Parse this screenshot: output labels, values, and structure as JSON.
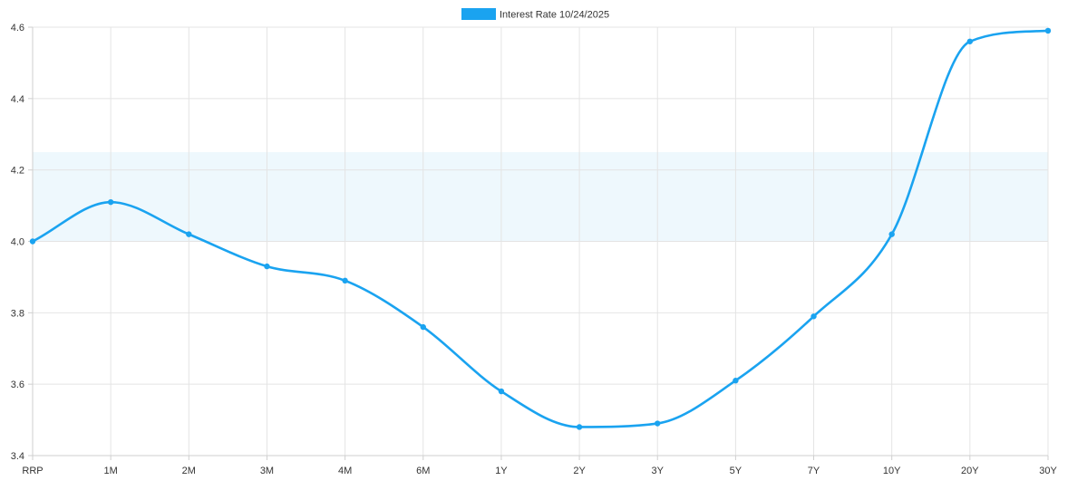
{
  "chart_data": {
    "type": "line",
    "categories": [
      "RRP",
      "1M",
      "2M",
      "3M",
      "4M",
      "6M",
      "1Y",
      "2Y",
      "3Y",
      "5Y",
      "7Y",
      "10Y",
      "20Y",
      "30Y"
    ],
    "series": [
      {
        "name": "Interest Rate 10/24/2025",
        "values": [
          4.0,
          4.11,
          4.02,
          3.93,
          3.89,
          3.76,
          3.58,
          3.48,
          3.49,
          3.61,
          3.79,
          4.02,
          4.56,
          4.59
        ],
        "color": "#1aa3f0"
      }
    ],
    "ylim": [
      3.4,
      4.6
    ],
    "yticks": [
      "3.4",
      "3.6",
      "3.8",
      "4.0",
      "4.2",
      "4.4",
      "4.6"
    ],
    "band": {
      "from": 4.0,
      "to": 4.25,
      "color": "#eef8fd"
    },
    "grid": true,
    "legend_position": "top-center",
    "title": "",
    "xlabel": "",
    "ylabel": ""
  }
}
